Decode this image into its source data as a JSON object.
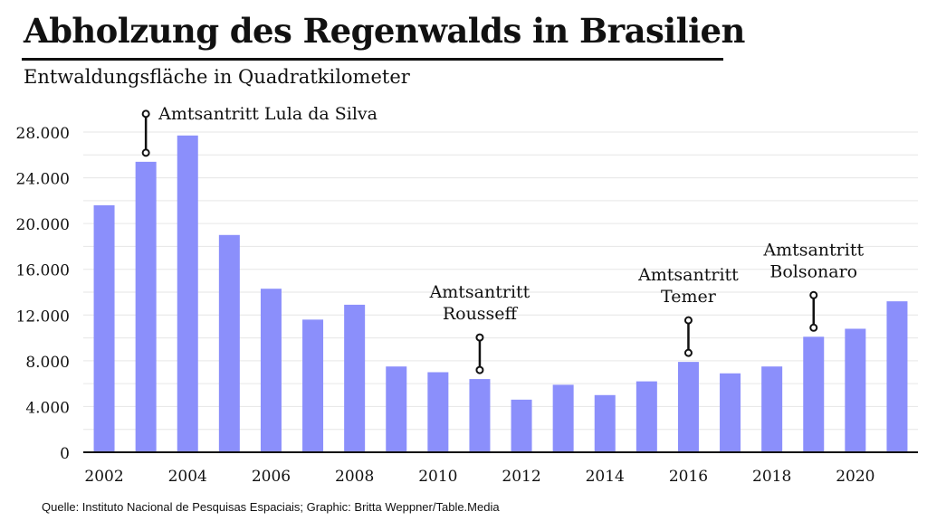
{
  "title": "Abholzung des Regenwalds in Brasilien",
  "subtitle": "Entwaldungsfläche in Quadratkilometer",
  "source": "Quelle: Instituto Nacional de Pesquisas Espaciais; Graphic: Britta Weppner/Table.Media",
  "colors": {
    "bar": "#8b8ffb",
    "grid": "#e6e6e6",
    "axis": "#111111",
    "text": "#111111"
  },
  "chart_data": {
    "type": "bar",
    "title": "Abholzung des Regenwalds in Brasilien",
    "subtitle": "Entwaldungsfläche in Quadratkilometer",
    "xlabel": "",
    "ylabel": "",
    "categories": [
      2002,
      2003,
      2004,
      2005,
      2006,
      2007,
      2008,
      2009,
      2010,
      2011,
      2012,
      2013,
      2014,
      2015,
      2016,
      2017,
      2018,
      2019,
      2020,
      2021
    ],
    "values": [
      21600,
      25400,
      27700,
      19000,
      14300,
      11600,
      12900,
      7500,
      7000,
      6400,
      4600,
      5900,
      5000,
      6200,
      7900,
      6900,
      7500,
      10100,
      10800,
      13200
    ],
    "ylim": [
      0,
      28000
    ],
    "yticks": [
      0,
      4000,
      8000,
      12000,
      16000,
      20000,
      24000,
      28000
    ],
    "ytick_labels": [
      "0",
      "4.000",
      "8.000",
      "12.000",
      "16.000",
      "20.000",
      "24.000",
      "28.000"
    ],
    "xtick_labels": [
      "2002",
      "2004",
      "2006",
      "2008",
      "2010",
      "2012",
      "2014",
      "2016",
      "2018",
      "2020"
    ],
    "grid": true,
    "annotations": [
      {
        "year": 2003,
        "lines": [
          "Amtsantritt Lula da Silva"
        ]
      },
      {
        "year": 2011,
        "lines": [
          "Amtsantritt",
          "Rousseff"
        ]
      },
      {
        "year": 2016,
        "lines": [
          "Amtsantritt",
          "Temer"
        ]
      },
      {
        "year": 2019,
        "lines": [
          "Amtsantritt",
          "Bolsonaro"
        ]
      }
    ]
  }
}
